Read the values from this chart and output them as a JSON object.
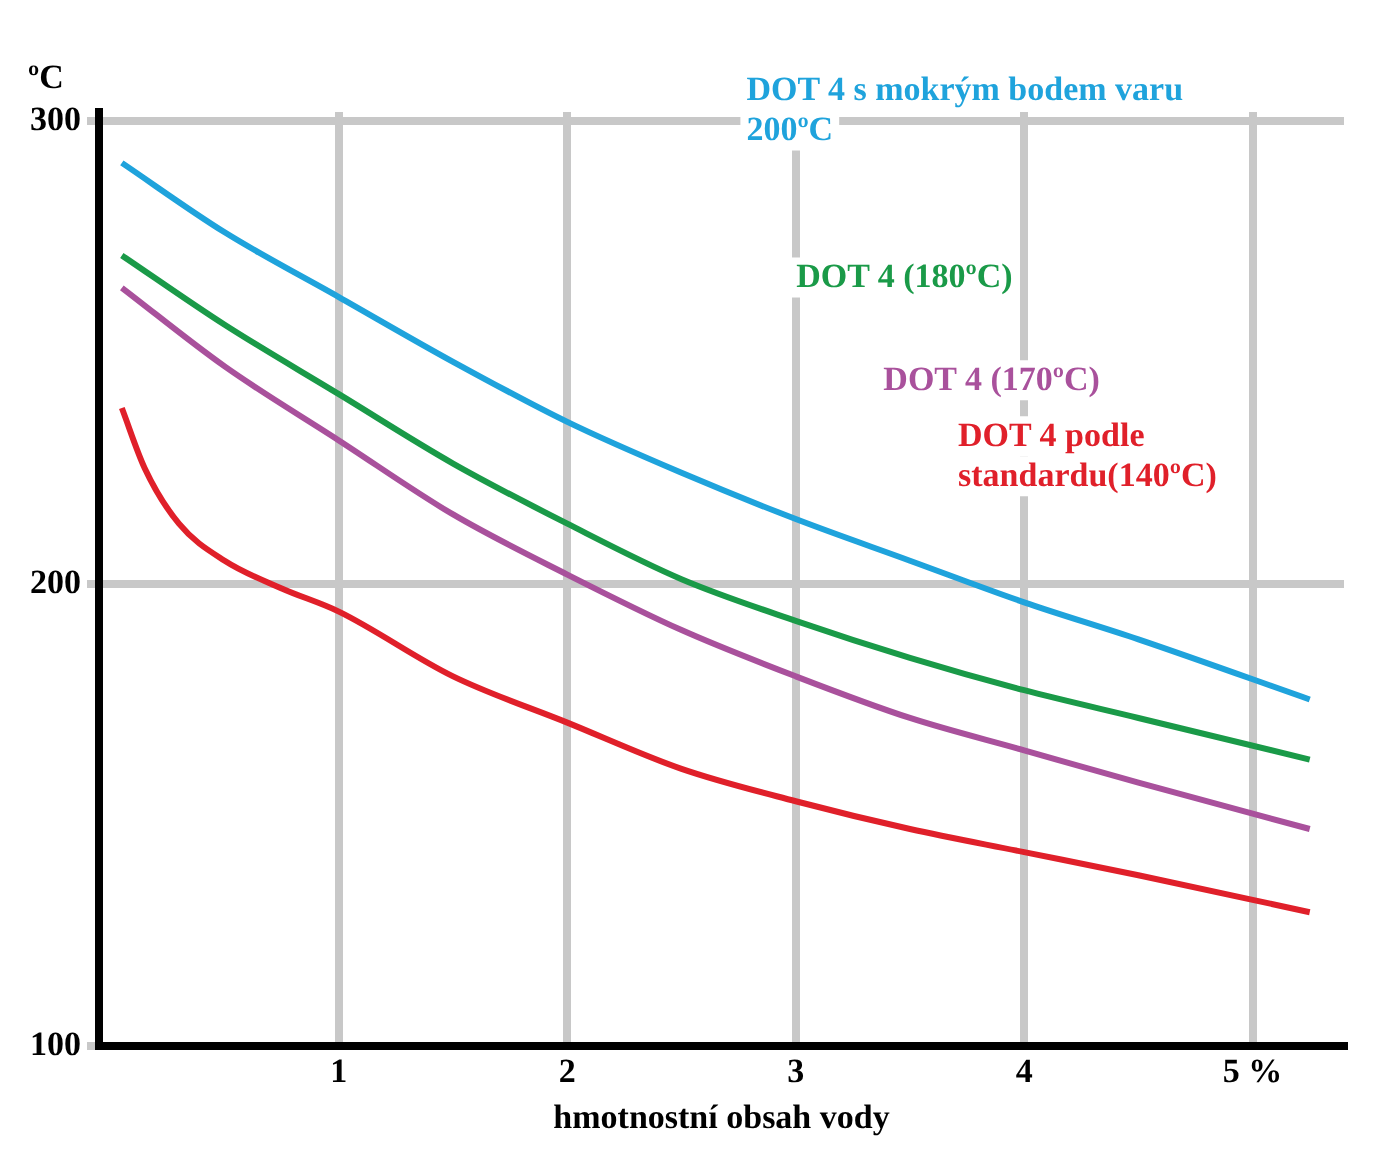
{
  "chart_data": {
    "type": "line",
    "xlabel": "hmotnostní obsah vody",
    "ylabel": "ºC",
    "xlim": [
      -0.05,
      5.4
    ],
    "xticks": [
      1,
      2,
      3,
      4,
      {
        "value": 5,
        "label": "5 %"
      }
    ],
    "ylim": [
      100,
      302
    ],
    "yticks": [
      100,
      200,
      300
    ],
    "grid": true,
    "legend": false,
    "marker": "none",
    "line_style": "solid",
    "series": [
      {
        "name": "DOT 4 s mokrým bodem varu 200ºC",
        "color": "#1fa3dc",
        "x": [
          0.05,
          0.5,
          1,
          1.5,
          2,
          2.5,
          3,
          3.5,
          4,
          4.5,
          5.25
        ],
        "values": [
          291,
          276,
          262,
          248,
          235,
          224,
          214,
          205,
          196,
          188,
          175
        ]
      },
      {
        "name": "DOT 4 (180ºC)",
        "color": "#1a9a48",
        "x": [
          0.05,
          0.5,
          1,
          1.5,
          2,
          2.5,
          3,
          3.5,
          4,
          4.5,
          5.25
        ],
        "values": [
          271,
          256,
          241,
          226,
          213,
          201,
          192,
          184,
          177,
          171,
          162
        ]
      },
      {
        "name": "DOT 4 (170ºC)",
        "color": "#a9519c",
        "x": [
          0.05,
          0.5,
          1,
          1.5,
          2,
          2.5,
          3,
          3.5,
          4,
          4.5,
          5.25
        ],
        "values": [
          264,
          247,
          231,
          215,
          202,
          190,
          180,
          171,
          164,
          157,
          147
        ]
      },
      {
        "name": "DOT 4 podle standardu(140ºC)",
        "color": "#e0202a",
        "x": [
          0.05,
          0.15,
          0.3,
          0.5,
          0.75,
          1,
          1.5,
          2,
          2.5,
          3,
          3.5,
          4,
          4.5,
          5.25
        ],
        "values": [
          238,
          225,
          213,
          205,
          199,
          194,
          180,
          170,
          160,
          153,
          147,
          142,
          137,
          129
        ]
      }
    ]
  }
}
